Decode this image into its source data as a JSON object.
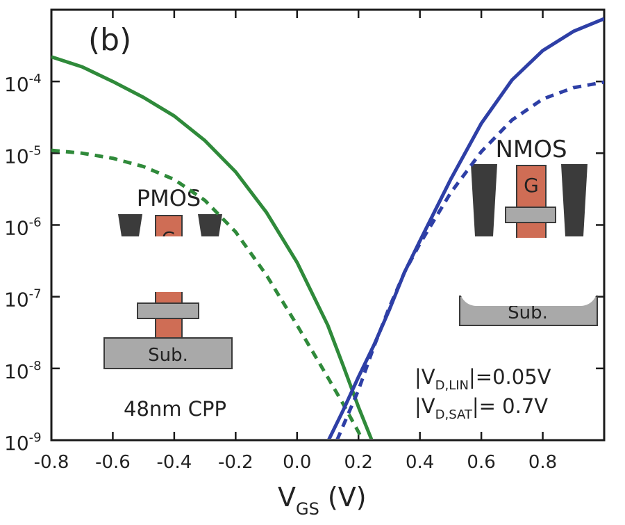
{
  "chart_data": {
    "type": "line",
    "panel_label": "(b)",
    "xlabel_main": "V",
    "xlabel_sub": "GS",
    "xlabel_unit": " (V)",
    "ylabel": "",
    "xlim": [
      -0.8,
      1.0
    ],
    "ylim": [
      1e-09,
      0.001
    ],
    "yscale": "log",
    "x_ticks": [
      -0.8,
      -0.6,
      -0.4,
      -0.2,
      0.0,
      0.2,
      0.4,
      0.6,
      0.8
    ],
    "x_tick_labels": [
      "-0.8",
      "-0.6",
      "-0.4",
      "-0.2",
      "0.0",
      "0.2",
      "0.4",
      "0.6",
      "0.8"
    ],
    "y_ticks": [
      {
        "value": 1e-09,
        "base": "10",
        "exp": "-9"
      },
      {
        "value": 1e-08,
        "base": "10",
        "exp": "-8"
      },
      {
        "value": 1e-07,
        "base": "10",
        "exp": "-7"
      },
      {
        "value": 1e-06,
        "base": "10",
        "exp": "-6"
      },
      {
        "value": 1e-05,
        "base": "10",
        "exp": "-5"
      },
      {
        "value": 0.0001,
        "base": "10",
        "exp": "-4"
      }
    ],
    "grid": false,
    "legend": "none",
    "series": [
      {
        "style": "solid",
        "color": "#2f8a3a",
        "x": [
          -0.8,
          -0.7,
          -0.6,
          -0.5,
          -0.4,
          -0.3,
          -0.2,
          -0.1,
          0.0,
          0.1,
          0.15,
          0.2,
          0.25
        ],
        "y": [
          0.00022,
          0.00016,
          0.0001,
          6e-05,
          3.3e-05,
          1.5e-05,
          5.5e-06,
          1.5e-06,
          3e-07,
          4e-08,
          1.1e-08,
          2.9e-09,
          8.5e-10
        ]
      },
      {
        "style": "dotted",
        "color": "#2f8a3a",
        "x": [
          -0.8,
          -0.7,
          -0.6,
          -0.5,
          -0.4,
          -0.3,
          -0.2,
          -0.1,
          0.0,
          0.1,
          0.15,
          0.2,
          0.22
        ],
        "y": [
          1.1e-05,
          1e-05,
          8.5e-06,
          6.5e-06,
          4.3e-06,
          2.2e-06,
          8e-07,
          2e-07,
          4e-08,
          7.5e-09,
          3.2e-09,
          1.3e-09,
          8.5e-10
        ]
      },
      {
        "style": "solid",
        "color": "#2e3fa6",
        "x": [
          0.1,
          0.15,
          0.2,
          0.25,
          0.3,
          0.35,
          0.4,
          0.5,
          0.6,
          0.7,
          0.8,
          0.9,
          1.0
        ],
        "y": [
          9.5e-10,
          2.6e-09,
          7.6e-09,
          2.1e-08,
          6.5e-08,
          2.2e-07,
          6e-07,
          4.3e-06,
          2.6e-05,
          0.000105,
          0.00027,
          0.0005,
          0.00075
        ]
      },
      {
        "style": "dotted",
        "color": "#2e3fa6",
        "x": [
          0.13,
          0.2,
          0.25,
          0.3,
          0.35,
          0.4,
          0.5,
          0.6,
          0.7,
          0.8,
          0.9,
          1.0
        ],
        "y": [
          1e-09,
          5e-09,
          2e-08,
          7e-08,
          2.2e-07,
          5.5e-07,
          2.8e-06,
          1.05e-05,
          2.9e-05,
          5.7e-05,
          8.2e-05,
          9.8e-05
        ]
      }
    ],
    "annotations": {
      "pmos_label": "PMOS",
      "nmos_label": "NMOS",
      "gate_label": "G",
      "sub_label": "Sub.",
      "cpp_label": "48nm CPP",
      "vd_lin_pre": "|V",
      "vd_lin_sub": "D,LIN",
      "vd_lin_post": "|=0.05V",
      "vd_sat_pre": "|V",
      "vd_sat_sub": "D,SAT",
      "vd_sat_post": "|= 0.7V"
    }
  }
}
